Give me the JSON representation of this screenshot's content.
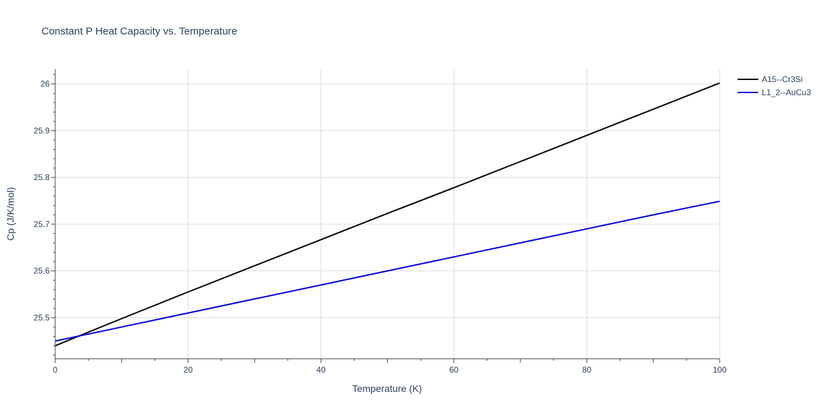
{
  "chart_data": {
    "type": "line",
    "title": "Constant P Heat Capacity vs. Temperature",
    "xlabel": "Temperature (K)",
    "ylabel": "Cp (J/K/mol)",
    "xlim": [
      0,
      100
    ],
    "ylim": [
      25.412,
      26.032
    ],
    "x_ticks": [
      0,
      20,
      40,
      60,
      80,
      100
    ],
    "y_ticks": [
      25.5,
      25.6,
      25.7,
      25.8,
      25.9,
      26
    ],
    "grid": true,
    "legend_position": "top-right",
    "x": [
      0,
      10,
      20,
      30,
      40,
      50,
      60,
      70,
      80,
      90,
      100
    ],
    "series": [
      {
        "name": "A15--Cr3Si",
        "color": "#000000",
        "values": [
          25.44,
          25.498,
          25.555,
          25.611,
          25.667,
          25.723,
          25.778,
          25.834,
          25.89,
          25.946,
          26.002
        ]
      },
      {
        "name": "L1_2--AuCu3",
        "color": "#0000dd",
        "values": [
          25.45,
          25.48,
          25.51,
          25.54,
          25.57,
          25.6,
          25.63,
          25.66,
          25.69,
          25.72,
          25.749
        ]
      }
    ]
  }
}
